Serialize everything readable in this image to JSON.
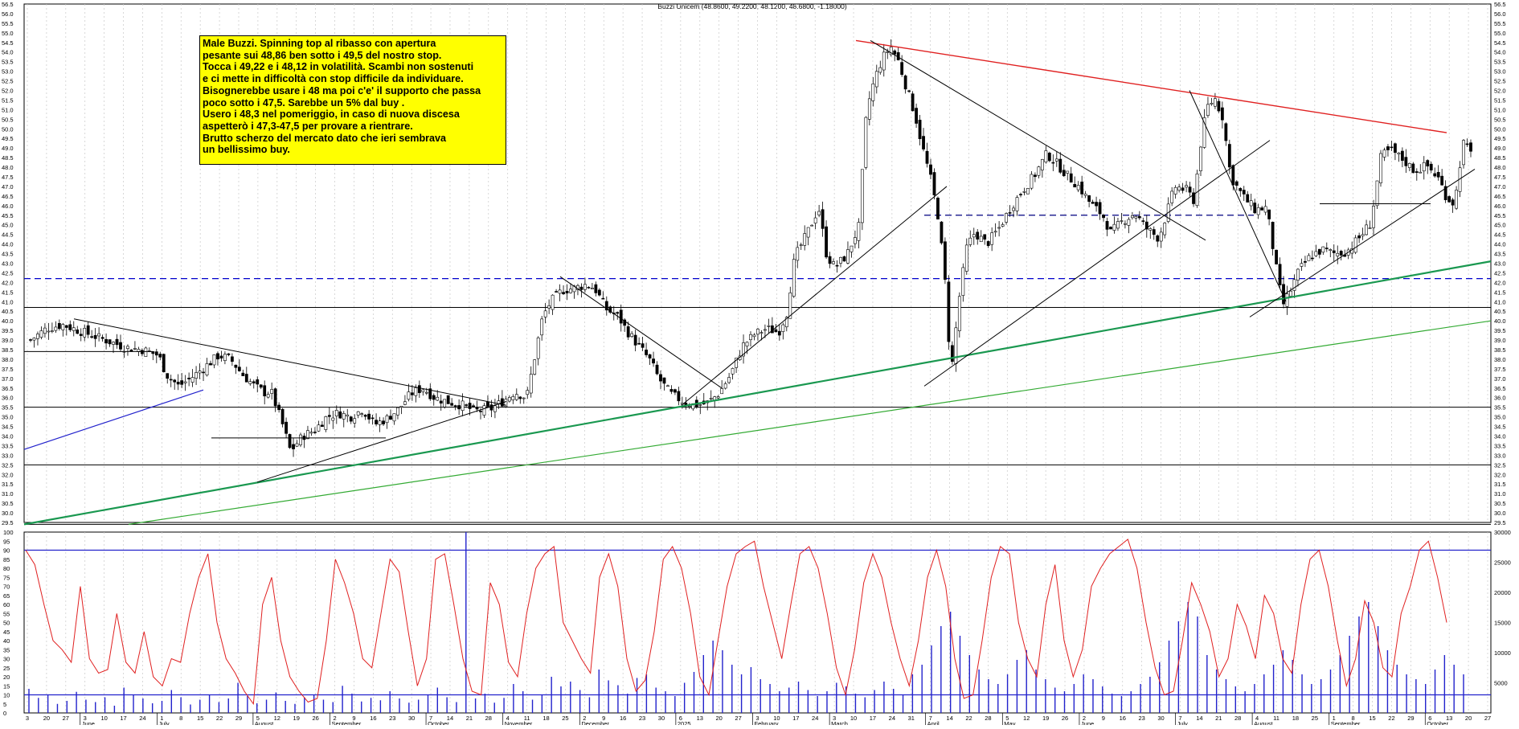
{
  "title": "Buzzi Unicem (48.8600, 49.2200, 48.1200, 48.6800, -1.18000)",
  "note_lines": [
    "Male Buzzi. Spinning top al ribasso con apertura",
    "pesante sui 48,86 ben sotto i 49,5 del nostro stop.",
    "Tocca i 49,22 e i 48,12 in volatilità. Scambi non sostenuti",
    "e ci mette in difficoltà con stop difficile da individuare.",
    "Bisognerebbe usare i 48 ma poi c'e' il supporto che passa",
    "poco sotto i 47,5. Sarebbe un 5% dal buy .",
    "Usero i 48,3 nel pomeriggio, in caso di nuova discesa",
    "aspetterò i 47,3-47,5 per provare a rientrare.",
    "Brutto scherzo del mercato dato che ieri sembrava",
    "un bellissimo buy."
  ],
  "chart_data": [
    {
      "type": "candlestick",
      "title": "Buzzi Unicem (48.8600, 49.2200, 48.1200, 48.6800, -1.18000)",
      "ylim": [
        29.5,
        56.5
      ],
      "y_ticks": [
        "56.5",
        "56.0",
        "55.5",
        "55.0",
        "54.5",
        "54.0",
        "53.5",
        "53.0",
        "52.5",
        "52.0",
        "51.5",
        "51.0",
        "50.5",
        "50.0",
        "49.5",
        "49.0",
        "48.5",
        "48.0",
        "47.5",
        "47.0",
        "46.5",
        "46.0",
        "45.5",
        "45.0",
        "44.5",
        "44.0",
        "43.5",
        "43.0",
        "42.5",
        "42.0",
        "41.5",
        "41.0",
        "40.5",
        "40.0",
        "39.5",
        "39.0",
        "38.5",
        "38.0",
        "37.5",
        "37.0",
        "36.5",
        "36.0",
        "35.5",
        "35.0",
        "34.5",
        "34.0",
        "33.5",
        "33.0",
        "32.5",
        "32.0",
        "31.5",
        "31.0",
        "30.5",
        "30.0",
        "29.5"
      ],
      "last_bar": {
        "open": 48.86,
        "high": 49.22,
        "low": 48.12,
        "close": 48.68,
        "change": -1.18
      },
      "horizontal_levels": [
        {
          "value": 42.2,
          "style": "dashed",
          "color": "#0000cc"
        },
        {
          "value": 40.7,
          "style": "solid",
          "color": "#000000"
        },
        {
          "value": 35.5,
          "style": "solid",
          "color": "#000000"
        },
        {
          "value": 32.5,
          "style": "solid",
          "color": "#000000"
        },
        {
          "value": 29.4,
          "style": "solid",
          "color": "#000000"
        },
        {
          "value": 45.5,
          "style": "dashed",
          "color": "#000080"
        }
      ],
      "price_path": [
        [
          0,
          39.0
        ],
        [
          20,
          39.6
        ],
        [
          40,
          39.8
        ],
        [
          60,
          39.5
        ],
        [
          80,
          39.2
        ],
        [
          100,
          38.9
        ],
        [
          120,
          38.6
        ],
        [
          140,
          38.5
        ],
        [
          160,
          38.2
        ],
        [
          170,
          37.2
        ],
        [
          185,
          36.6
        ],
        [
          200,
          37.0
        ],
        [
          215,
          37.5
        ],
        [
          235,
          38.2
        ],
        [
          250,
          38.0
        ],
        [
          265,
          37.2
        ],
        [
          280,
          36.6
        ],
        [
          295,
          36.2
        ],
        [
          300,
          36.4
        ],
        [
          315,
          34.6
        ],
        [
          325,
          33.2
        ],
        [
          340,
          34.0
        ],
        [
          355,
          34.3
        ],
        [
          370,
          35.0
        ],
        [
          385,
          35.2
        ],
        [
          400,
          35.0
        ],
        [
          415,
          35.4
        ],
        [
          430,
          34.6
        ],
        [
          445,
          34.9
        ],
        [
          460,
          35.4
        ],
        [
          475,
          36.2
        ],
        [
          490,
          36.5
        ],
        [
          505,
          36.0
        ],
        [
          520,
          35.8
        ],
        [
          540,
          35.6
        ],
        [
          555,
          35.3
        ],
        [
          575,
          35.4
        ],
        [
          590,
          35.8
        ],
        [
          605,
          36.3
        ],
        [
          620,
          36.0
        ],
        [
          640,
          40.2
        ],
        [
          650,
          41.0
        ],
        [
          665,
          41.6
        ],
        [
          680,
          41.7
        ],
        [
          695,
          41.9
        ],
        [
          705,
          41.7
        ],
        [
          720,
          40.6
        ],
        [
          735,
          40.2
        ],
        [
          745,
          39.5
        ],
        [
          760,
          38.7
        ],
        [
          775,
          37.9
        ],
        [
          785,
          37.0
        ],
        [
          800,
          36.2
        ],
        [
          815,
          35.8
        ],
        [
          830,
          35.6
        ],
        [
          845,
          35.7
        ],
        [
          860,
          36.2
        ],
        [
          875,
          37.2
        ],
        [
          890,
          38.7
        ],
        [
          905,
          39.3
        ],
        [
          920,
          39.6
        ],
        [
          935,
          39.4
        ],
        [
          945,
          40.4
        ],
        [
          955,
          43.3
        ],
        [
          970,
          44.5
        ],
        [
          985,
          45.9
        ],
        [
          995,
          43.4
        ],
        [
          1005,
          42.8
        ],
        [
          1020,
          43.4
        ],
        [
          1035,
          44.9
        ],
        [
          1045,
          51.0
        ],
        [
          1055,
          52.6
        ],
        [
          1065,
          53.7
        ],
        [
          1075,
          54.3
        ],
        [
          1085,
          53.5
        ],
        [
          1095,
          52.1
        ],
        [
          1105,
          50.8
        ],
        [
          1115,
          49.0
        ],
        [
          1125,
          47.4
        ],
        [
          1135,
          45.3
        ],
        [
          1145,
          41.2
        ],
        [
          1150,
          37.0
        ],
        [
          1160,
          41.0
        ],
        [
          1170,
          43.8
        ],
        [
          1180,
          44.6
        ],
        [
          1195,
          44.0
        ],
        [
          1210,
          44.8
        ],
        [
          1225,
          45.9
        ],
        [
          1240,
          46.8
        ],
        [
          1255,
          47.6
        ],
        [
          1270,
          48.7
        ],
        [
          1280,
          48.3
        ],
        [
          1295,
          47.6
        ],
        [
          1310,
          47.0
        ],
        [
          1325,
          46.1
        ],
        [
          1340,
          45.5
        ],
        [
          1350,
          44.6
        ],
        [
          1365,
          45.2
        ],
        [
          1380,
          45.6
        ],
        [
          1395,
          44.8
        ],
        [
          1410,
          44.3
        ],
        [
          1420,
          45.6
        ],
        [
          1430,
          47.0
        ],
        [
          1445,
          46.8
        ],
        [
          1455,
          46.2
        ],
        [
          1460,
          48.6
        ],
        [
          1470,
          51.1
        ],
        [
          1480,
          51.6
        ],
        [
          1490,
          50.6
        ],
        [
          1500,
          47.5
        ],
        [
          1515,
          46.5
        ],
        [
          1530,
          45.8
        ],
        [
          1545,
          45.9
        ],
        [
          1555,
          43.2
        ],
        [
          1565,
          40.8
        ],
        [
          1575,
          41.6
        ],
        [
          1585,
          42.6
        ],
        [
          1600,
          43.4
        ],
        [
          1615,
          43.7
        ],
        [
          1630,
          43.5
        ],
        [
          1645,
          43.6
        ],
        [
          1660,
          44.3
        ],
        [
          1675,
          45.1
        ],
        [
          1688,
          48.6
        ],
        [
          1700,
          48.9
        ],
        [
          1715,
          48.4
        ],
        [
          1730,
          47.8
        ],
        [
          1745,
          48.1
        ],
        [
          1760,
          47.4
        ],
        [
          1770,
          46.4
        ],
        [
          1780,
          46.1
        ],
        [
          1790,
          49.3
        ],
        [
          1800,
          48.7
        ]
      ],
      "x_ticks": [
        {
          "label": "3"
        },
        {
          "label": "20"
        },
        {
          "label": "27"
        },
        {
          "label": "3"
        },
        {
          "label": "10"
        },
        {
          "label": "17"
        },
        {
          "label": "24"
        },
        {
          "label": "1"
        },
        {
          "label": "8"
        },
        {
          "label": "15"
        },
        {
          "label": "22"
        },
        {
          "label": "29"
        },
        {
          "label": "5"
        },
        {
          "label": "12"
        },
        {
          "label": "19"
        },
        {
          "label": "26"
        },
        {
          "label": "2"
        },
        {
          "label": "9"
        },
        {
          "label": "16"
        },
        {
          "label": "23"
        },
        {
          "label": "30"
        },
        {
          "label": "7"
        },
        {
          "label": "14"
        },
        {
          "label": "21"
        },
        {
          "label": "28"
        },
        {
          "label": "4"
        },
        {
          "label": "11"
        },
        {
          "label": "18"
        },
        {
          "label": "25"
        },
        {
          "label": "2"
        },
        {
          "label": "9"
        },
        {
          "label": "16"
        },
        {
          "label": "23"
        },
        {
          "label": "30"
        },
        {
          "label": "6"
        },
        {
          "label": "13"
        },
        {
          "label": "20"
        },
        {
          "label": "27"
        },
        {
          "label": "3"
        },
        {
          "label": "10"
        },
        {
          "label": "17"
        },
        {
          "label": "24"
        },
        {
          "label": "3"
        },
        {
          "label": "10"
        },
        {
          "label": "17"
        },
        {
          "label": "24"
        },
        {
          "label": "31"
        },
        {
          "label": "7"
        },
        {
          "label": "14"
        },
        {
          "label": "22"
        },
        {
          "label": "28"
        },
        {
          "label": "5"
        },
        {
          "label": "12"
        },
        {
          "label": "19"
        },
        {
          "label": "26"
        },
        {
          "label": "2"
        },
        {
          "label": "9"
        },
        {
          "label": "16"
        },
        {
          "label": "23"
        },
        {
          "label": "30"
        },
        {
          "label": "7"
        },
        {
          "label": "14"
        },
        {
          "label": "21"
        },
        {
          "label": "28"
        },
        {
          "label": "4"
        },
        {
          "label": "11"
        },
        {
          "label": "18"
        },
        {
          "label": "25"
        },
        {
          "label": "1"
        },
        {
          "label": "8"
        },
        {
          "label": "15"
        },
        {
          "label": "22"
        },
        {
          "label": "29"
        },
        {
          "label": "6"
        },
        {
          "label": "13"
        },
        {
          "label": "20"
        },
        {
          "label": "27"
        }
      ],
      "month_labels": [
        {
          "label": "June"
        },
        {
          "label": "July"
        },
        {
          "label": "August"
        },
        {
          "label": "September"
        },
        {
          "label": "October"
        },
        {
          "label": "November"
        },
        {
          "label": "December"
        },
        {
          "label": "2025"
        },
        {
          "label": "February"
        },
        {
          "label": "March"
        },
        {
          "label": "April"
        },
        {
          "label": "May"
        },
        {
          "label": "June"
        },
        {
          "label": "July"
        },
        {
          "label": "August"
        },
        {
          "label": "September"
        },
        {
          "label": "October"
        }
      ]
    },
    {
      "type": "line",
      "name": "oscillator",
      "ylim": [
        0,
        100
      ],
      "y_ticks": [
        "100",
        "95",
        "90",
        "85",
        "80",
        "75",
        "70",
        "65",
        "60",
        "55",
        "50",
        "45",
        "40",
        "35",
        "30",
        "25",
        "20",
        "15",
        "10",
        "5",
        "0"
      ],
      "levels": [
        90,
        10
      ],
      "values": [
        90,
        82,
        60,
        40,
        35,
        28,
        70,
        30,
        22,
        24,
        55,
        28,
        22,
        45,
        20,
        15,
        30,
        28,
        55,
        75,
        88,
        50,
        30,
        22,
        12,
        5,
        60,
        75,
        40,
        20,
        12,
        6,
        8,
        40,
        85,
        72,
        55,
        30,
        25,
        55,
        85,
        78,
        45,
        15,
        30,
        85,
        88,
        60,
        30,
        12,
        10,
        72,
        60,
        28,
        20,
        55,
        80,
        88,
        92,
        50,
        40,
        30,
        22,
        75,
        88,
        70,
        30,
        12,
        18,
        45,
        85,
        92,
        80,
        55,
        20,
        10,
        40,
        70,
        88,
        92,
        95,
        70,
        50,
        30,
        60,
        88,
        92,
        80,
        55,
        25,
        10,
        35,
        72,
        88,
        75,
        50,
        30,
        15,
        40,
        75,
        90,
        70,
        30,
        8,
        10,
        40,
        75,
        92,
        88,
        50,
        30,
        20,
        60,
        82,
        40,
        20,
        35,
        70,
        80,
        88,
        92,
        96,
        80,
        50,
        25,
        10,
        12,
        40,
        72,
        60,
        45,
        20,
        30,
        60,
        48,
        30,
        65,
        55,
        30,
        22,
        60,
        85,
        90,
        70,
        40,
        15,
        30,
        62,
        50,
        25,
        20,
        55,
        70,
        90,
        95,
        75,
        50
      ]
    },
    {
      "type": "bar",
      "name": "volume",
      "ylim": [
        0,
        30000
      ],
      "y_ticks": [
        "30000",
        "25000",
        "20000",
        "15000",
        "10000",
        "5000"
      ],
      "values": [
        4000,
        2500,
        3000,
        1500,
        2000,
        3500,
        2200,
        1800,
        2600,
        1200,
        4200,
        3000,
        2400,
        1600,
        2000,
        3800,
        2600,
        1400,
        2200,
        3000,
        1800,
        2400,
        5000,
        2800,
        1600,
        2200,
        3400,
        2000,
        1500,
        2600,
        3000,
        2200,
        1800,
        4500,
        3200,
        1900,
        2500,
        2100,
        3600,
        2400,
        1700,
        2200,
        3000,
        4200,
        2600,
        1800,
        30000,
        2400,
        3200,
        1700,
        2500,
        4800,
        3600,
        2200,
        3000,
        6000,
        4400,
        5200,
        3800,
        2600,
        7200,
        5400,
        4600,
        3200,
        5800,
        6400,
        4200,
        3600,
        2800,
        5000,
        6800,
        9600,
        12000,
        10400,
        8000,
        6400,
        7600,
        5600,
        4800,
        3600,
        4200,
        5200,
        3800,
        2800,
        3600,
        5000,
        4400,
        3200,
        2600,
        3800,
        5200,
        4000,
        3000,
        6400,
        8000,
        11200,
        14400,
        16800,
        12800,
        9600,
        7200,
        5600,
        4800,
        6400,
        8800,
        10400,
        7200,
        5600,
        4200,
        3600,
        4800,
        6400,
        5600,
        4400,
        3200,
        2800,
        3600,
        4800,
        6000,
        8400,
        12000,
        15200,
        18400,
        16000,
        9600,
        7200,
        5600,
        4400,
        3600,
        4800,
        6400,
        8000,
        10400,
        8800,
        6400,
        4800,
        5600,
        7200,
        9600,
        12800,
        16000,
        18400,
        14400,
        10400,
        8000,
        6400,
        5600,
        4800,
        7200,
        9600,
        8000,
        6400
      ]
    }
  ]
}
